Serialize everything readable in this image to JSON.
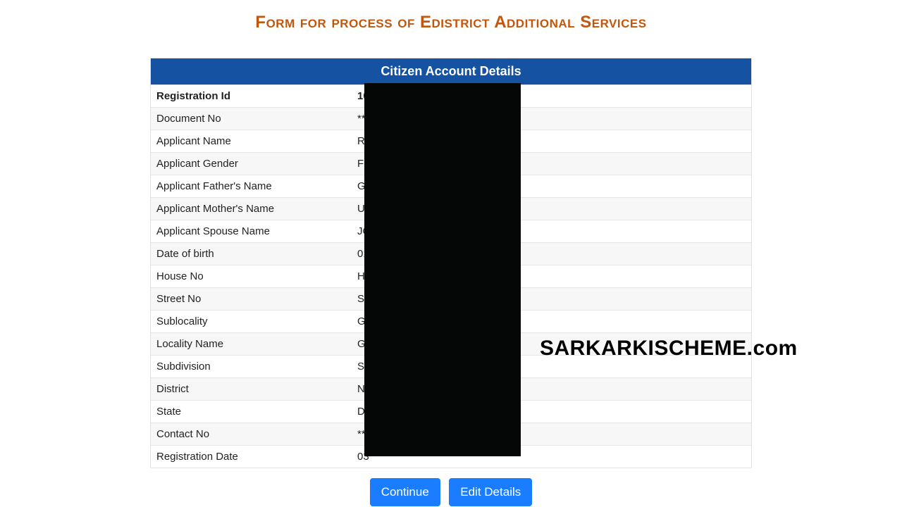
{
  "page": {
    "title": "Form for process of Edistrict Additional Services"
  },
  "panel": {
    "header": "Citizen Account Details"
  },
  "rows": [
    {
      "label": "Registration Id",
      "value": "10"
    },
    {
      "label": "Document No",
      "value": "***"
    },
    {
      "label": "Applicant Name",
      "value": "RU"
    },
    {
      "label": "Applicant Gender",
      "value": "F"
    },
    {
      "label": "Applicant Father's Name",
      "value": "GI"
    },
    {
      "label": "Applicant Mother's Name",
      "value": "US"
    },
    {
      "label": "Applicant Spouse Name",
      "value": "JO"
    },
    {
      "label": "Date of birth",
      "value": "01"
    },
    {
      "label": "House No",
      "value": "H-"
    },
    {
      "label": "Street No",
      "value": "ST"
    },
    {
      "label": "Sublocality",
      "value": "GH"
    },
    {
      "label": "Locality Name",
      "value": "GH"
    },
    {
      "label": "Subdivision",
      "value": "Se"
    },
    {
      "label": "District",
      "value": "No"
    },
    {
      "label": "State",
      "value": "De"
    },
    {
      "label": "Contact No",
      "value": "***"
    },
    {
      "label": "Registration Date",
      "value": "03"
    }
  ],
  "buttons": {
    "continue": "Continue",
    "edit": "Edit Details"
  },
  "watermark": "SARKARKISCHEME.com",
  "colors": {
    "title": "#c2570c",
    "header_bg": "#1652a2",
    "header_text": "#ffffff",
    "button_bg": "#1a7cff",
    "row_alt_bg": "#f7f7f7",
    "border": "#e6e6e6",
    "redaction": "#050707"
  }
}
